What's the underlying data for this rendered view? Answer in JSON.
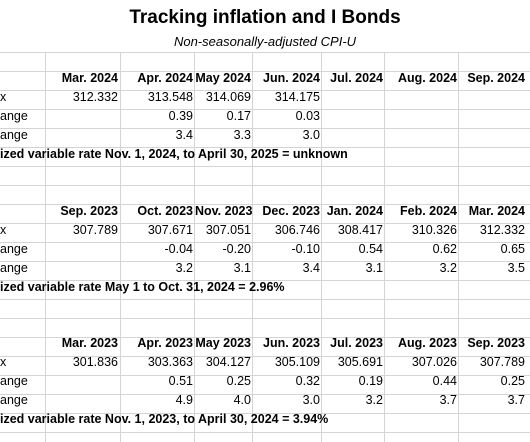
{
  "title": "Tracking inflation and I Bonds",
  "subtitle": "Non-seasonally-adjusted CPI-U",
  "tables": [
    {
      "months": [
        "Mar. 2024",
        "Apr. 2024",
        "May 2024",
        "Jun. 2024",
        "Jul. 2024",
        "Aug. 2024",
        "Sep. 2024"
      ],
      "index_label": "x",
      "monthly_label": "ange",
      "annual_label": "ange",
      "index": [
        "312.332",
        "313.548",
        "314.069",
        "314.175",
        "",
        "",
        ""
      ],
      "monthly": [
        "",
        "0.39",
        "0.17",
        "0.03",
        "",
        "",
        ""
      ],
      "annual": [
        "",
        "3.4",
        "3.3",
        "3.0",
        "",
        "",
        ""
      ],
      "note": "ized variable rate Nov. 1, 2024, to April 30, 2025 = unknown"
    },
    {
      "months": [
        "Sep. 2023",
        "Oct. 2023",
        "Nov. 2023",
        "Dec. 2023",
        "Jan. 2024",
        "Feb. 2024",
        "Mar. 2024"
      ],
      "index_label": "x",
      "monthly_label": "ange",
      "annual_label": "ange",
      "index": [
        "307.789",
        "307.671",
        "307.051",
        "306.746",
        "308.417",
        "310.326",
        "312.332"
      ],
      "monthly": [
        "",
        "-0.04",
        "-0.20",
        "-0.10",
        "0.54",
        "0.62",
        "0.65"
      ],
      "annual": [
        "",
        "3.2",
        "3.1",
        "3.4",
        "3.1",
        "3.2",
        "3.5"
      ],
      "note": "ized variable rate May 1 to Oct. 31, 2024 = 2.96%"
    },
    {
      "months": [
        "Mar. 2023",
        "Apr. 2023",
        "May 2023",
        "Jun. 2023",
        "Jul. 2023",
        "Aug. 2023",
        "Sep. 2023"
      ],
      "index_label": "x",
      "monthly_label": "ange",
      "annual_label": "ange",
      "index": [
        "301.836",
        "303.363",
        "304.127",
        "305.109",
        "305.691",
        "307.026",
        "307.789"
      ],
      "monthly": [
        "",
        "0.51",
        "0.25",
        "0.32",
        "0.19",
        "0.44",
        "0.25"
      ],
      "annual": [
        "",
        "4.9",
        "4.0",
        "3.0",
        "3.2",
        "3.7",
        "3.7"
      ],
      "note": "ized variable rate Nov. 1, 2023, to April 30, 2024 = 3.94%"
    }
  ]
}
